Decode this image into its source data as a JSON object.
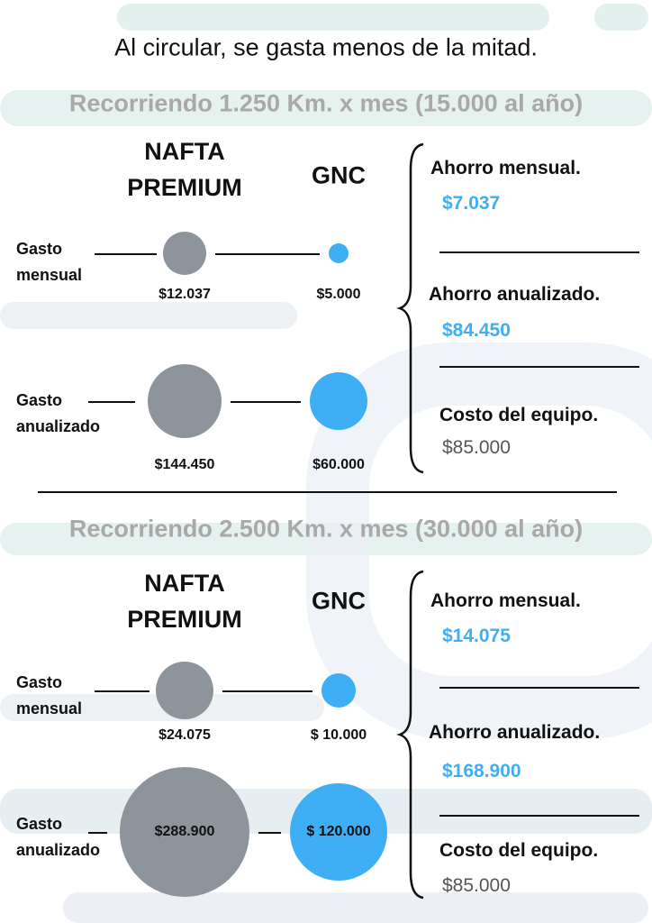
{
  "title": "Al circular, se gasta menos de la mitad.",
  "sections": [
    {
      "heading": "Recorriendo 1.250 Km. x mes (15.000 al año)",
      "columns": [
        "NAFTA PREMIUM",
        "GNC"
      ],
      "rows": [
        {
          "label": "Gasto mensual",
          "nafta": "$12.037",
          "gnc": "$5.000"
        },
        {
          "label": "Gasto anualizado",
          "nafta": "$144.450",
          "gnc": "$60.000"
        }
      ],
      "summary": [
        {
          "label": "Ahorro mensual.",
          "value": "$7.037"
        },
        {
          "label": "Ahorro anualizado.",
          "value": "$84.450"
        },
        {
          "label": "Costo del equipo.",
          "value": "$85.000"
        }
      ]
    },
    {
      "heading": "Recorriendo 2.500 Km. x mes (30.000 al año)",
      "columns": [
        "NAFTA PREMIUM",
        "GNC"
      ],
      "rows": [
        {
          "label": "Gasto mensual",
          "nafta": "$24.075",
          "gnc": "$ 10.000"
        },
        {
          "label": "Gasto anualizado",
          "nafta": "$288.900",
          "gnc": "$ 120.000"
        }
      ],
      "summary": [
        {
          "label": "Ahorro mensual.",
          "value": "$14.075"
        },
        {
          "label": "Ahorro anualizado.",
          "value": "$168.900"
        },
        {
          "label": "Costo del equipo.",
          "value": "$85.000"
        }
      ]
    }
  ]
}
